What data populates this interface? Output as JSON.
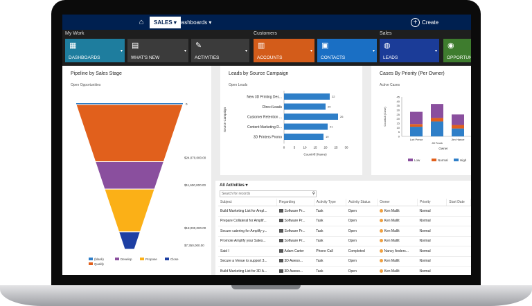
{
  "topbar": {
    "module": "SALES",
    "dashboard": "Dashboards",
    "create": "Create"
  },
  "nav": {
    "groups": [
      "My Work",
      "Customers",
      "Sales"
    ],
    "tiles": [
      {
        "label": "DASHBOARDS",
        "color": "#1e7d9e",
        "icon": "dashboard-icon"
      },
      {
        "label": "WHAT'S NEW",
        "color": "#3b3b3b",
        "icon": "news-icon"
      },
      {
        "label": "ACTIVITIES",
        "color": "#3b3b3b",
        "icon": "activities-icon"
      },
      {
        "label": "ACCOUNTS",
        "color": "#d35c1a",
        "icon": "accounts-icon"
      },
      {
        "label": "CONTACTS",
        "color": "#1a6fc4",
        "icon": "contacts-icon"
      },
      {
        "label": "LEADS",
        "color": "#1b3c98",
        "icon": "leads-icon"
      },
      {
        "label": "OPPORTUNI",
        "color": "#3e7c2e",
        "icon": "opportunities-icon"
      }
    ]
  },
  "pipeline": {
    "title": "Pipeline by Sales Stage",
    "subtitle": "Open Opportunities",
    "chart_data": {
      "type": "funnel",
      "stages": [
        {
          "name": "(blank)",
          "label": "0",
          "value": 0,
          "color": "#2f7fc8"
        },
        {
          "name": "Qualify",
          "label": "$24,070,000.00",
          "value": 24070000,
          "color": "#e1601c"
        },
        {
          "name": "Develop",
          "label": "$11,600,000.00",
          "value": 11600000,
          "color": "#8a4f9e"
        },
        {
          "name": "Propose",
          "label": "$18,000,000.00",
          "value": 18000000,
          "color": "#fbb017"
        },
        {
          "name": "Close",
          "label": "$7,350,000.00",
          "value": 7350000,
          "color": "#1d3fa3"
        }
      ],
      "legend": [
        "(blank)",
        "Develop",
        "Propose",
        "Close",
        "Qualify"
      ]
    }
  },
  "leads": {
    "title": "Leads by Source Campaign",
    "subtitle": "Open Leads",
    "chart_data": {
      "type": "bar",
      "orientation": "horizontal",
      "categories": [
        "New 3D Printing Des...",
        "Direct Leads",
        "Customer Retention ...",
        "Content Marketing D...",
        "3D Printers Promo"
      ],
      "values": [
        22,
        20,
        26,
        21,
        19
      ],
      "xlabel": "CountAll (Name)",
      "ylabel": "Source Campaign",
      "xlim": [
        0,
        30
      ],
      "xticks": [
        0,
        5,
        10,
        15,
        20,
        25,
        30
      ],
      "color": "#2f7fc8"
    }
  },
  "cases": {
    "title": "Cases By Priority (Per Owner)",
    "subtitle": "Active Cases",
    "chart_data": {
      "type": "bar",
      "stacked": true,
      "categories": [
        "Lori Penor",
        "Jill Frank",
        "Jim Hance"
      ],
      "series": [
        {
          "name": "Low",
          "color": "#8a4f9e",
          "values": [
            14,
            16,
            12
          ]
        },
        {
          "name": "Normal",
          "color": "#e1601c",
          "values": [
            3,
            4,
            4
          ]
        },
        {
          "name": "High",
          "color": "#2f7fc8",
          "values": [
            11,
            17,
            9
          ]
        }
      ],
      "ylabel": "CountAll (Case)",
      "xlabel": "Owner",
      "ylim": [
        0,
        45
      ],
      "yticks": [
        0,
        5,
        10,
        15,
        20,
        25,
        30,
        35,
        40,
        45
      ]
    }
  },
  "activities": {
    "title": "All Activities",
    "search_placeholder": "Search for records",
    "columns": [
      "Subject",
      "Regarding",
      "Activity Type",
      "Activity Status",
      "Owner",
      "Priority",
      "Start Date"
    ],
    "rows": [
      [
        "Build Marketing List for Ampl...",
        "Software Pr...",
        "Task",
        "Open",
        "Ken Mallit",
        "Normal",
        ""
      ],
      [
        "Prepare Collateral for Amplif...",
        "Software Pr...",
        "Task",
        "Open",
        "Ken Mallit",
        "Normal",
        ""
      ],
      [
        "Secure catering for Amplify y...",
        "Software Pr...",
        "Task",
        "Open",
        "Ken Mallit",
        "Normal",
        ""
      ],
      [
        "Promote Amplify your Sales...",
        "Software Pr...",
        "Task",
        "Open",
        "Ken Mallit",
        "Normal",
        ""
      ],
      [
        "Said I",
        "Adam Carter",
        "Phone Call",
        "Completed",
        "Nancy Anders...",
        "Normal",
        ""
      ],
      [
        "Secure a Venue to support 3...",
        "3D Aweso...",
        "Task",
        "Open",
        "Ken Mallit",
        "Normal",
        ""
      ],
      [
        "Build Marketing List for 3D A...",
        "3D Aweso...",
        "Task",
        "Open",
        "Ken Mallit",
        "Normal",
        ""
      ]
    ]
  }
}
